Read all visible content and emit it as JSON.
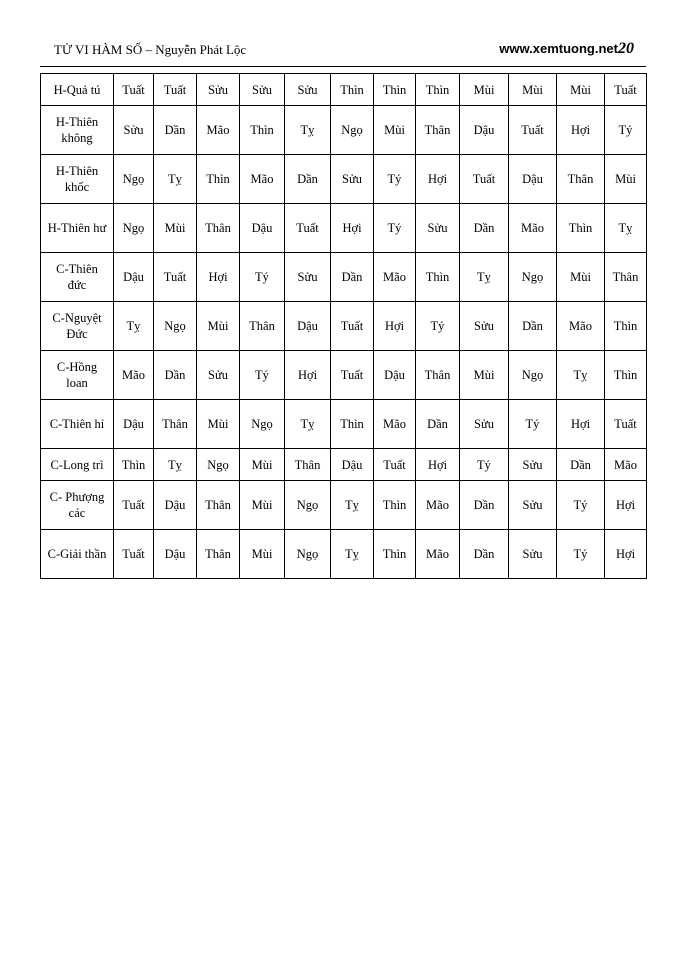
{
  "header": {
    "title": "TỬ VI HÀM SỐ – Nguyễn Phát Lộc",
    "site": "www.xemtuong.net",
    "page_number": "20"
  },
  "table": {
    "rows": [
      {
        "label": "H-Quả tú",
        "cells": [
          "Tuất",
          "Tuất",
          "Sửu",
          "Sửu",
          "Sửu",
          "Thìn",
          "Thìn",
          "Thìn",
          "Mùi",
          "Mùi",
          "Mùi",
          "Tuất"
        ]
      },
      {
        "label": "H-Thiên không",
        "cells": [
          "Sửu",
          "Dần",
          "Mão",
          "Thìn",
          "Tỵ",
          "Ngọ",
          "Mùi",
          "Thân",
          "Dậu",
          "Tuất",
          "Hợi",
          "Tý"
        ]
      },
      {
        "label": "H-Thiên khốc",
        "cells": [
          "Ngọ",
          "Tỵ",
          "Thìn",
          "Mão",
          "Dần",
          "Sửu",
          "Tý",
          "Hợi",
          "Tuất",
          "Dậu",
          "Thân",
          "Mùi"
        ]
      },
      {
        "label": "H-Thiên hư",
        "cells": [
          "Ngọ",
          "Mùi",
          "Thân",
          "Dậu",
          "Tuất",
          "Hợi",
          "Tý",
          "Sửu",
          "Dần",
          "Mão",
          "Thìn",
          "Tỵ"
        ]
      },
      {
        "label": "C-Thiên đức",
        "cells": [
          "Dậu",
          "Tuất",
          "Hợi",
          "Tý",
          "Sửu",
          "Dần",
          "Mão",
          "Thìn",
          "Tỵ",
          "Ngọ",
          "Mùi",
          "Thân"
        ]
      },
      {
        "label": "C-Nguyệt Đức",
        "cells": [
          "Tỵ",
          "Ngọ",
          "Mùi",
          "Thân",
          "Dậu",
          "Tuất",
          "Hợi",
          "Tý",
          "Sửu",
          "Dần",
          "Mão",
          "Thìn"
        ]
      },
      {
        "label": "C-Hồng loan",
        "cells": [
          "Mão",
          "Dần",
          "Sửu",
          "Tý",
          "Hợi",
          "Tuất",
          "Dậu",
          "Thân",
          "Mùi",
          "Ngọ",
          "Tỵ",
          "Thìn"
        ]
      },
      {
        "label": "C-Thiên hỉ",
        "cells": [
          "Dậu",
          "Thân",
          "Mùi",
          "Ngọ",
          "Tỵ",
          "Thìn",
          "Mão",
          "Dần",
          "Sửu",
          "Tý",
          "Hợi",
          "Tuất"
        ]
      },
      {
        "label": "C-Long trì",
        "cells": [
          "Thìn",
          "Tỵ",
          "Ngọ",
          "Mùi",
          "Thân",
          "Dậu",
          "Tuất",
          "Hợi",
          "Tý",
          "Sửu",
          "Dần",
          "Mão"
        ]
      },
      {
        "label": "C- Phượng các",
        "cells": [
          "Tuất",
          "Dậu",
          "Thân",
          "Mùi",
          "Ngọ",
          "Tỵ",
          "Thìn",
          "Mão",
          "Dần",
          "Sửu",
          "Tý",
          "Hợi"
        ]
      },
      {
        "label": "C-Giải thần",
        "cells": [
          "Tuất",
          "Dậu",
          "Thân",
          "Mùi",
          "Ngọ",
          "Tỵ",
          "Thìn",
          "Mão",
          "Dần",
          "Sửu",
          "Tý",
          "Hợi"
        ]
      }
    ]
  }
}
